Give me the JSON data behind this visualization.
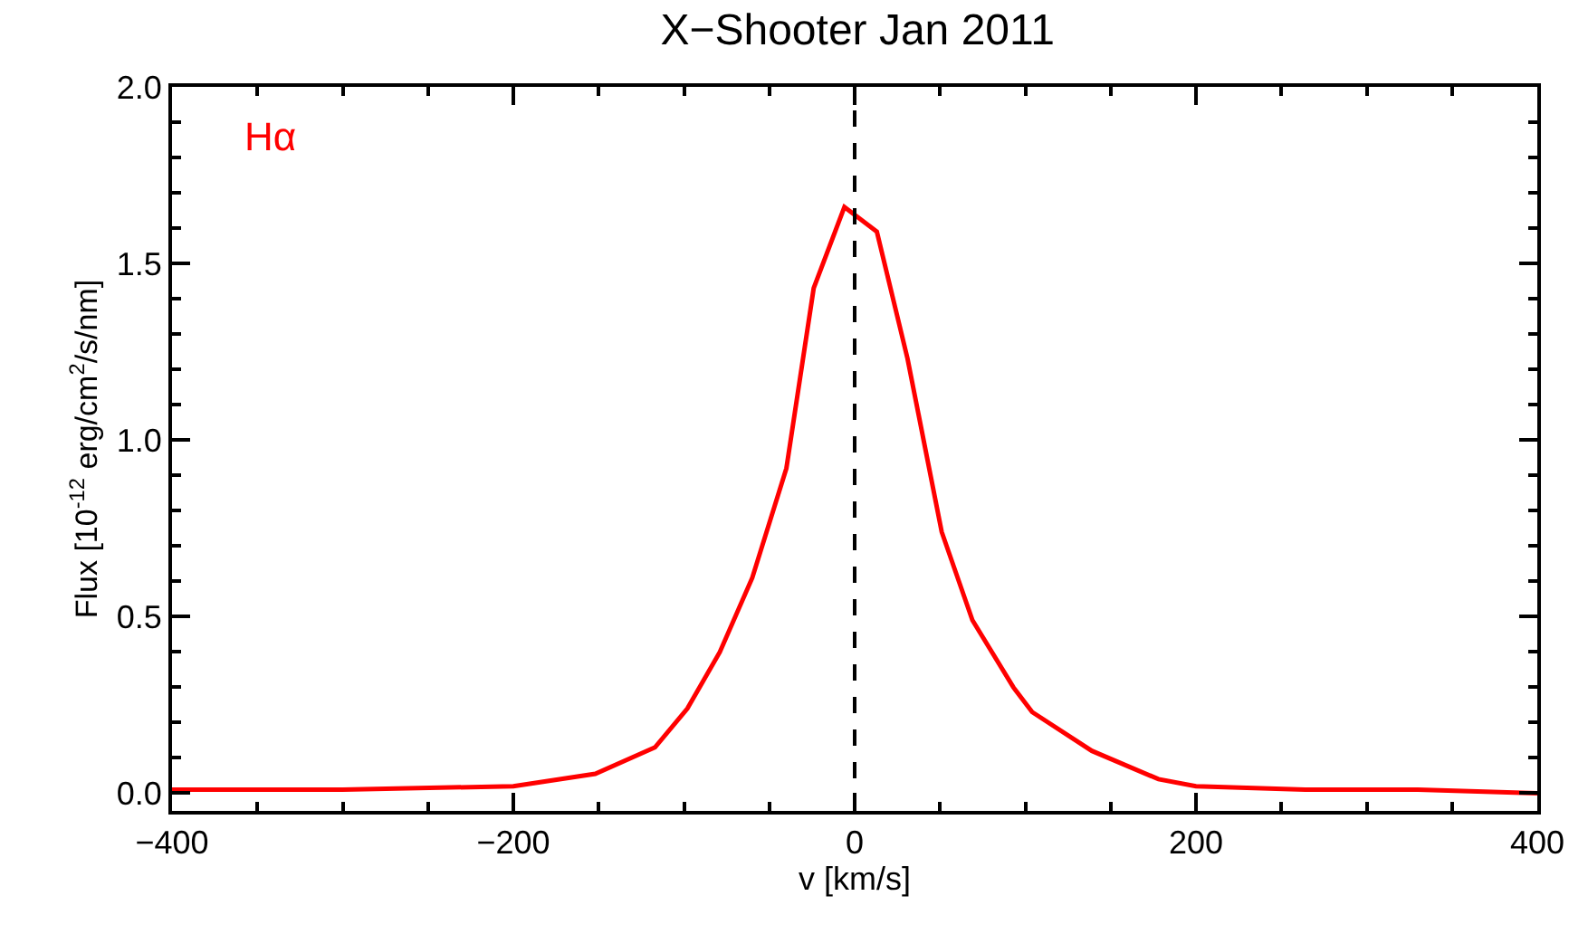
{
  "chart_data": {
    "type": "line",
    "title": "X−Shooter Jan 2011",
    "xlabel": "v [km/s]",
    "ylabel": "Flux [10$^{-12}$ erg/cm$^{2}$/s/nm]",
    "xlim": [
      -400,
      400
    ],
    "xticks": [
      {
        "value": -400,
        "label": "−400"
      },
      {
        "value": -200,
        "label": "−200"
      },
      0,
      200,
      400
    ],
    "ylim": [
      -0.05,
      2.0
    ],
    "yticks": [
      {
        "value": 0,
        "label": "0.0"
      },
      0.5,
      {
        "value": 1,
        "label": "1.0"
      },
      1.5,
      {
        "value": 2,
        "label": "2.0"
      }
    ],
    "legend": false,
    "marker": "none",
    "line_style": "solid",
    "ref_lines": [
      {
        "axis": "x",
        "value": 0,
        "color": "#000000",
        "line_style": "dashed"
      }
    ],
    "series": [
      {
        "name": "Hα",
        "color": "#ff0000",
        "x": [
          -400,
          -300,
          -200,
          -152,
          -117,
          -98,
          -79,
          -60,
          -40,
          -24,
          -6,
          13,
          31,
          51,
          69,
          93,
          104,
          139,
          178,
          200,
          264,
          330,
          400
        ],
        "values": [
          0.01,
          0.01,
          0.02,
          0.055,
          0.13,
          0.24,
          0.4,
          0.61,
          0.92,
          1.43,
          1.66,
          1.59,
          1.23,
          0.74,
          0.49,
          0.3,
          0.23,
          0.12,
          0.04,
          0.02,
          0.01,
          0.01,
          0.0
        ]
      }
    ]
  }
}
